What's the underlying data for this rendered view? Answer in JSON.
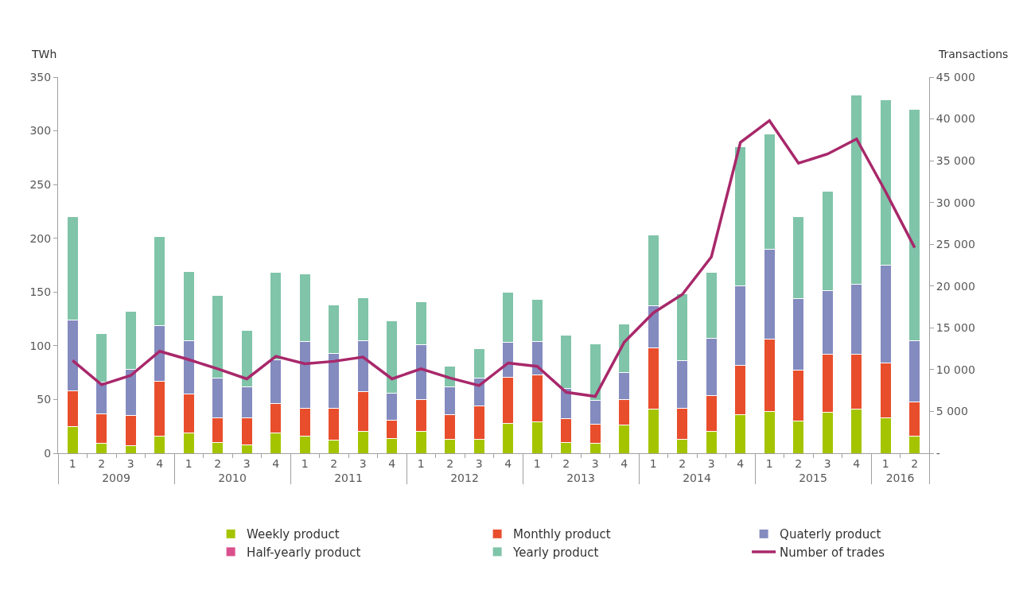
{
  "chart_data": {
    "type": "bar",
    "stacked": true,
    "categories": [
      "1",
      "2",
      "3",
      "4",
      "1",
      "2",
      "3",
      "4",
      "1",
      "2",
      "3",
      "4",
      "1",
      "2",
      "3",
      "4",
      "1",
      "2",
      "3",
      "4",
      "1",
      "2",
      "3",
      "4",
      "1",
      "2",
      "3",
      "4",
      "1",
      "2"
    ],
    "annotations": [
      "2009",
      "2010",
      "2011",
      "2012",
      "2013",
      "2014",
      "2015",
      "2016"
    ],
    "ylabel": "TWh",
    "y2label": "Transactions",
    "ylim": [
      0,
      350
    ],
    "yticks": [
      0,
      50,
      100,
      150,
      200,
      250,
      300,
      350
    ],
    "y2lim": [
      0,
      45000
    ],
    "y2ticks": [
      {
        "value": 0,
        "label": "-"
      },
      {
        "value": 5000,
        "label": "5 000"
      },
      {
        "value": 10000,
        "label": "10 000"
      },
      {
        "value": 15000,
        "label": "15 000"
      },
      {
        "value": 20000,
        "label": "20 000"
      },
      {
        "value": 25000,
        "label": "25 000"
      },
      {
        "value": 30000,
        "label": "30 000"
      },
      {
        "value": 35000,
        "label": "35 000"
      },
      {
        "value": 40000,
        "label": "40 000"
      },
      {
        "value": 45000,
        "label": "45 000"
      }
    ],
    "legend": "bottom",
    "marker": "none",
    "series": [
      {
        "name": "Weekly product",
        "color": "#a5c400",
        "values": [
          25,
          9,
          7,
          16,
          19,
          10,
          8,
          19,
          16,
          12,
          20,
          14,
          20,
          13,
          13,
          28,
          29,
          10,
          9,
          26,
          41,
          13,
          20,
          36,
          39,
          30,
          38,
          41,
          33,
          16
        ]
      },
      {
        "name": "Monthly product",
        "color": "#e84e2c",
        "values": [
          33,
          28,
          28,
          51,
          36,
          23,
          25,
          27,
          26,
          30,
          37,
          17,
          30,
          23,
          31,
          43,
          44,
          22,
          18,
          24,
          57,
          29,
          34,
          46,
          67,
          47,
          54,
          51,
          51,
          32
        ]
      },
      {
        "name": "Quaterly product",
        "color": "#848bbf",
        "values": [
          66,
          29,
          43,
          52,
          50,
          37,
          29,
          41,
          62,
          51,
          48,
          25,
          51,
          26,
          26,
          32,
          31,
          28,
          22,
          25,
          39,
          44,
          53,
          74,
          84,
          67,
          59,
          65,
          91,
          57
        ]
      },
      {
        "name": "Half-yearly product",
        "color": "#d9508c",
        "values": [
          0,
          0,
          0,
          0,
          0,
          0,
          0,
          0,
          0,
          0,
          0,
          0,
          0,
          0,
          0,
          0,
          0,
          0,
          0,
          0,
          0,
          0,
          0,
          0,
          0,
          0,
          0,
          0,
          0,
          0
        ]
      },
      {
        "name": "Yearly product",
        "color": "#80c4a9",
        "values": [
          96,
          45,
          54,
          83,
          64,
          77,
          52,
          81,
          63,
          45,
          40,
          67,
          40,
          19,
          27,
          47,
          39,
          50,
          53,
          45,
          66,
          62,
          61,
          129,
          107,
          76,
          93,
          176,
          154,
          215
        ]
      },
      {
        "name": "Number of trades",
        "color": "#a8286a",
        "type": "line",
        "axis": "y2",
        "line_style": "solid",
        "values": [
          11100,
          8200,
          9300,
          12200,
          11200,
          10100,
          8900,
          11600,
          10700,
          11000,
          11500,
          8900,
          10100,
          9000,
          8100,
          10800,
          10400,
          7300,
          6800,
          13300,
          16800,
          19000,
          23500,
          37200,
          39800,
          34700,
          35800,
          37600,
          31300,
          24600
        ]
      }
    ]
  }
}
